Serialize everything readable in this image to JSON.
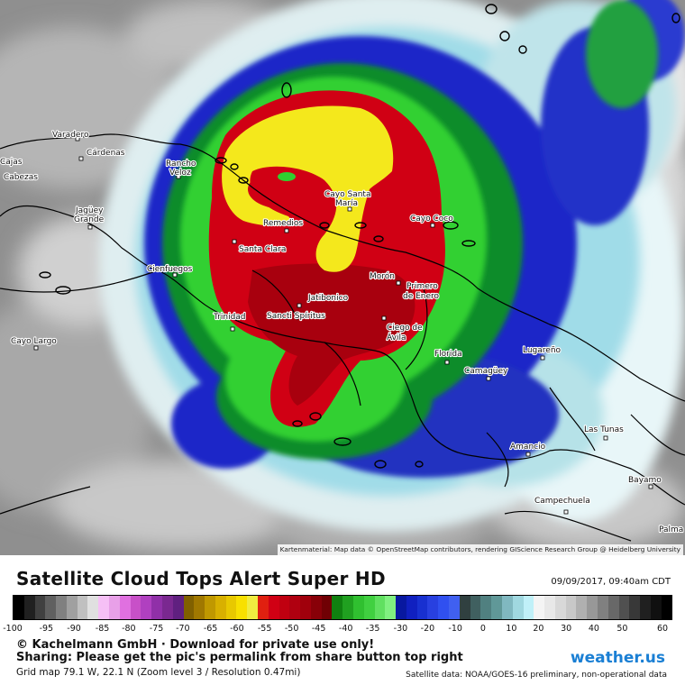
{
  "legend": {
    "title": "Satellite Cloud Tops Alert Super HD",
    "datetime": "09/09/2017, 09:40am CDT",
    "tick_labels": [
      "-100",
      "-95",
      "-90",
      "-85",
      "-80",
      "-75",
      "-70",
      "-65",
      "-60",
      "-55",
      "-50",
      "-45",
      "-40",
      "-35",
      "-30",
      "-20",
      "-10",
      "0",
      "10",
      "20",
      "30",
      "40",
      "50",
      "60"
    ],
    "copyright": "© Kachelmann GmbH · Download for private use only!",
    "sharing": "Sharing: Please get the pic's permalink from share button top right",
    "grid_info": "Grid map 79.1 W, 22.1 N (Zoom level 3 / Resolution 0.47mi)",
    "satellite_data": "Satellite data: NOAA/GOES-16 preliminary, non-operational data",
    "logo_main": "weather.us",
    "colors": {
      "gray_dark": "#1a1a1a",
      "pink": "#e070e0",
      "purple": "#a040c0",
      "olive": "#c0a000",
      "yellow": "#f0e020",
      "red": "#d00010",
      "dark_red": "#b00010",
      "green": "#20c020",
      "blue": "#1020c0",
      "cyan_light": "#b0e8f0"
    }
  },
  "map": {
    "attribution": "Kartenmaterial: Map data © OpenStreetMap contributors, rendering GIScience Research Group @ Heidelberg University",
    "cities": [
      {
        "id": "varadero",
        "name": "Varadero"
      },
      {
        "id": "cardenas",
        "name": "Cárdenas"
      },
      {
        "id": "cabezas",
        "name": "Cabezas"
      },
      {
        "id": "jaguey",
        "name": "Jagüey"
      },
      {
        "id": "grande",
        "name": "Grande"
      },
      {
        "id": "rancho",
        "name": "Rancho"
      },
      {
        "id": "veloz",
        "name": "Veloz"
      },
      {
        "id": "cayo_santa",
        "name": "Cayo Santa"
      },
      {
        "id": "maria",
        "name": "María"
      },
      {
        "id": "remedios",
        "name": "Remedios"
      },
      {
        "id": "santa_clara",
        "name": "Santa Clara"
      },
      {
        "id": "cayo_coco",
        "name": "Cayo Coco"
      },
      {
        "id": "cienfuegos",
        "name": "Cienfuegos"
      },
      {
        "id": "moron",
        "name": "Morón"
      },
      {
        "id": "primero",
        "name": "Primero"
      },
      {
        "id": "de_enero",
        "name": "de Enero"
      },
      {
        "id": "jatibonico",
        "name": "Jatibonico"
      },
      {
        "id": "trinidad",
        "name": "Trinidad"
      },
      {
        "id": "sancti",
        "name": "Sancti Spíritus"
      },
      {
        "id": "ciego",
        "name": "Ciego de"
      },
      {
        "id": "avila",
        "name": "Ávila"
      },
      {
        "id": "cayo_largo",
        "name": "Cayo Largo"
      },
      {
        "id": "florida",
        "name": "Florida"
      },
      {
        "id": "lugareno",
        "name": "Lugareño"
      },
      {
        "id": "camaguey",
        "name": "Camagüey"
      },
      {
        "id": "las_tunas",
        "name": "Las Tunas"
      },
      {
        "id": "amancio",
        "name": "Amancio"
      },
      {
        "id": "bayamo",
        "name": "Bayamo"
      },
      {
        "id": "campechuela",
        "name": "Campechuela"
      },
      {
        "id": "palma",
        "name": "Palma"
      },
      {
        "id": "cajas",
        "name": "Cajas"
      }
    ]
  }
}
